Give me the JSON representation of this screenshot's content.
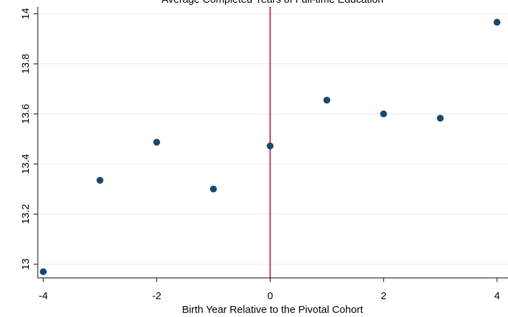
{
  "chart_data": {
    "type": "scatter",
    "title": "Average Completed Years of Full-time Education",
    "xlabel": "Birth Year Relative to the Pivotal Cohort",
    "ylabel": "",
    "xlim": [
      -4,
      4
    ],
    "ylim": [
      12.97,
      14.0
    ],
    "x_ticks": [
      -4,
      -2,
      0,
      2,
      4
    ],
    "x_tick_labels": [
      "-4",
      "-2",
      "0",
      "2",
      "4"
    ],
    "y_ticks": [
      13.0,
      13.2,
      13.4,
      13.6,
      13.8,
      14.0
    ],
    "y_tick_labels": [
      "13",
      "13.2",
      "13.4",
      "13.6",
      "13.8",
      "14"
    ],
    "grid": true,
    "reference_line_x": 0,
    "series": [
      {
        "x": [
          -4,
          -3,
          -2,
          -1,
          0,
          1,
          2,
          3,
          4
        ],
        "y": [
          12.97,
          13.335,
          13.487,
          13.3,
          13.472,
          13.655,
          13.6,
          13.583,
          13.966
        ]
      }
    ],
    "colors": {
      "marker": "#1a476f",
      "reference_line": "#c10534",
      "grid": "#eaf2f3",
      "axis": "#000000"
    }
  }
}
